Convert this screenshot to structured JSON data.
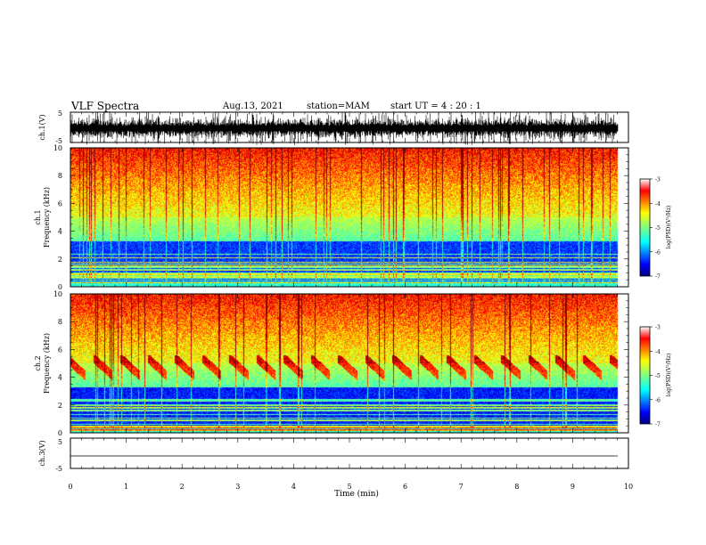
{
  "header": {
    "title": "VLF Spectra",
    "date": "Aug.13, 2021",
    "station": "station=MAM",
    "start": "start  UT  =   4 : 20 : 1"
  },
  "chart_data": {
    "type": "heatmap",
    "xlabel": "Time  (min)",
    "xlim": [
      0,
      10
    ],
    "xticks": [
      "0",
      "1",
      "2",
      "3",
      "4",
      "5",
      "6",
      "7",
      "8",
      "9",
      "10"
    ],
    "panels": [
      {
        "name": "ch1-waveform",
        "ylabel": "ch.1(V)",
        "ylim": [
          -5,
          5
        ],
        "yticks": [
          "5",
          "-5"
        ]
      },
      {
        "name": "ch1-spectrogram",
        "ylabel_line1": "ch.1",
        "ylabel_line2": "Frequency  (kHz)",
        "ylim": [
          0,
          10
        ],
        "yticks": [
          "0",
          "2",
          "4",
          "6",
          "8",
          "10"
        ]
      },
      {
        "name": "ch2-spectrogram",
        "ylabel_line1": "ch.2",
        "ylabel_line2": "Frequency  (kHz)",
        "ylim": [
          0,
          10
        ],
        "yticks": [
          "0",
          "2",
          "4",
          "6",
          "8",
          "10"
        ]
      },
      {
        "name": "ch3-waveform",
        "ylabel": "ch.3(V)",
        "ylim": [
          -5,
          5
        ],
        "yticks": [
          "5",
          "-5"
        ]
      }
    ],
    "colorbar": {
      "label": "log(PSD)(V²/Hz)",
      "range": [
        -7,
        -3
      ],
      "ticks": [
        "-3",
        "-4",
        "-5",
        "-6",
        "-7"
      ]
    }
  }
}
